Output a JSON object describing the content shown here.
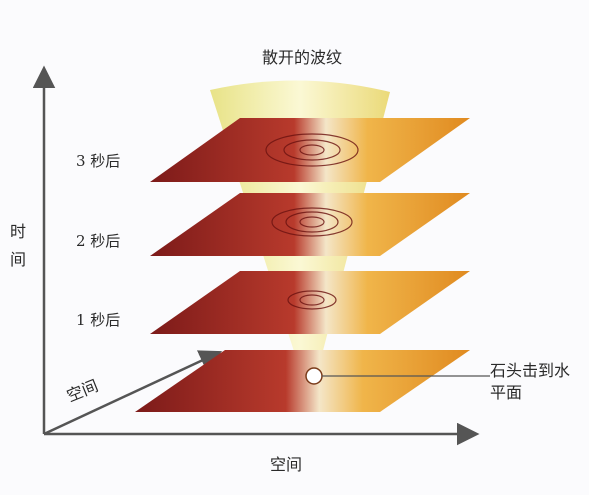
{
  "diagram": {
    "title": "散开的波纹",
    "y_axis_label": "时间",
    "x_axis_label": "空间",
    "diag_axis_label": "空间",
    "layer_labels": [
      "3 秒后",
      "2 秒后",
      "1 秒后"
    ],
    "stone_label": "石头击到水平面"
  },
  "colors": {
    "plane_dark": "#8e1f1c",
    "plane_light": "#f2b03a",
    "cone": "#f1ee9a",
    "axis": "#555555"
  }
}
